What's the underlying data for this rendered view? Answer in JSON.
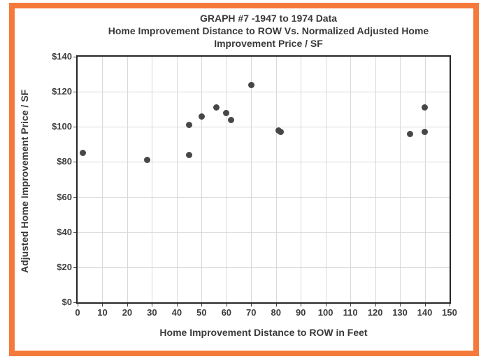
{
  "frame": {
    "border_color": "#f5793b",
    "background_color": "#ffffff"
  },
  "chart_data": {
    "type": "scatter",
    "title": "GRAPH #7 -1947 to 1974 Data Home Improvement Distance to ROW Vs. Normalized Adjusted Home Improvement Price / SF",
    "title_lines": [
      "GRAPH #7 -1947 to 1974 Data",
      "Home Improvement Distance to ROW Vs. Normalized Adjusted Home",
      "Improvement Price / SF"
    ],
    "xlabel": "Home Improvement Distance to ROW in Feet",
    "ylabel": "Adjusted Home Improvement  Price / SF",
    "xlim": [
      0,
      150
    ],
    "ylim": [
      0,
      140
    ],
    "x_ticks": [
      0,
      10,
      20,
      30,
      40,
      50,
      60,
      70,
      80,
      90,
      100,
      110,
      120,
      130,
      140,
      150
    ],
    "x_tick_labels": [
      "0",
      "10",
      "20",
      "30",
      "40",
      "50",
      "60",
      "70",
      "80",
      "90",
      "100",
      "110",
      "120",
      "130",
      "140",
      "150"
    ],
    "y_ticks": [
      0,
      20,
      40,
      60,
      80,
      100,
      120,
      140
    ],
    "y_tick_labels": [
      "$0",
      "$20",
      "$40",
      "$60",
      "$80",
      "$100",
      "$120",
      "$140"
    ],
    "grid": true,
    "legend": false,
    "marker_color": "#474747",
    "gridline_color": "#d9d9d9",
    "points": [
      {
        "x": 2,
        "y": 85
      },
      {
        "x": 28,
        "y": 81
      },
      {
        "x": 45,
        "y": 84
      },
      {
        "x": 45,
        "y": 101
      },
      {
        "x": 50,
        "y": 106
      },
      {
        "x": 56,
        "y": 111
      },
      {
        "x": 60,
        "y": 108
      },
      {
        "x": 62,
        "y": 104
      },
      {
        "x": 70,
        "y": 124
      },
      {
        "x": 81,
        "y": 98
      },
      {
        "x": 82,
        "y": 97
      },
      {
        "x": 134,
        "y": 96
      },
      {
        "x": 140,
        "y": 97
      },
      {
        "x": 140,
        "y": 111
      }
    ]
  }
}
